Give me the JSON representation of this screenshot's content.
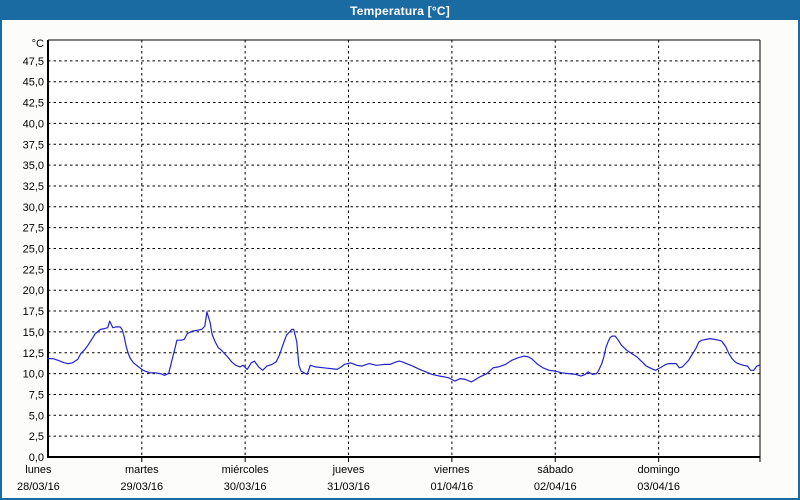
{
  "window": {
    "title": "Temperatura [°C]"
  },
  "colors": {
    "titlebar_bg": "#1b6ba3",
    "window_border": "#1b6ba3",
    "plot_bg": "#ffffff",
    "grid": "#000000",
    "axis": "#000000",
    "line": "#2323cb",
    "text": "#000000",
    "title_text": "#ffffff"
  },
  "chart_data": {
    "type": "line",
    "title": "Temperatura [°C]",
    "y_unit_label": "°C",
    "ylim": [
      0,
      50
    ],
    "y_tick_step": 2.5,
    "y_tick_labels": [
      "0,0",
      "2,5",
      "5,0",
      "7,5",
      "10,0",
      "12,5",
      "15,0",
      "17,5",
      "20,0",
      "22,5",
      "25,0",
      "27,5",
      "30,0",
      "32,5",
      "35,0",
      "37,5",
      "40,0",
      "42,5",
      "45,0",
      "47,5"
    ],
    "grid": true,
    "legend_position": "none",
    "x_days": [
      {
        "name": "lunes",
        "date": "28/03/16"
      },
      {
        "name": "martes",
        "date": "29/03/16"
      },
      {
        "name": "miércoles",
        "date": "30/03/16"
      },
      {
        "name": "jueves",
        "date": "31/03/16"
      },
      {
        "name": "viernes",
        "date": "01/04/16"
      },
      {
        "name": "sábado",
        "date": "02/04/16"
      },
      {
        "name": "domingo",
        "date": "03/04/16"
      }
    ],
    "series": [
      {
        "name": "Temperatura",
        "color": "#2323cb",
        "x_unit": "days_since_monday_00h",
        "points": [
          [
            0.09,
            11.8
          ],
          [
            0.14,
            11.8
          ],
          [
            0.19,
            11.6
          ],
          [
            0.25,
            11.3
          ],
          [
            0.29,
            11.2
          ],
          [
            0.33,
            11.3
          ],
          [
            0.38,
            11.7
          ],
          [
            0.41,
            12.4
          ],
          [
            0.45,
            12.9
          ],
          [
            0.48,
            13.4
          ],
          [
            0.52,
            14.2
          ],
          [
            0.55,
            14.8
          ],
          [
            0.58,
            15.1
          ],
          [
            0.6,
            15.3
          ],
          [
            0.64,
            15.4
          ],
          [
            0.67,
            15.5
          ],
          [
            0.69,
            16.3
          ],
          [
            0.72,
            15.5
          ],
          [
            0.75,
            15.6
          ],
          [
            0.79,
            15.6
          ],
          [
            0.81,
            15.3
          ],
          [
            0.83,
            14.4
          ],
          [
            0.85,
            13.2
          ],
          [
            0.87,
            12.4
          ],
          [
            0.89,
            11.8
          ],
          [
            0.92,
            11.3
          ],
          [
            0.96,
            10.9
          ],
          [
            1.0,
            10.5
          ],
          [
            1.03,
            10.3
          ],
          [
            1.08,
            10.1
          ],
          [
            1.13,
            10.1
          ],
          [
            1.18,
            10.0
          ],
          [
            1.22,
            9.8
          ],
          [
            1.26,
            10.0
          ],
          [
            1.28,
            11.0
          ],
          [
            1.3,
            12.0
          ],
          [
            1.32,
            13.0
          ],
          [
            1.34,
            14.0
          ],
          [
            1.38,
            14.0
          ],
          [
            1.41,
            14.1
          ],
          [
            1.44,
            14.8
          ],
          [
            1.49,
            15.1
          ],
          [
            1.54,
            15.2
          ],
          [
            1.58,
            15.3
          ],
          [
            1.61,
            15.7
          ],
          [
            1.63,
            17.4
          ],
          [
            1.66,
            16.2
          ],
          [
            1.68,
            14.7
          ],
          [
            1.71,
            13.8
          ],
          [
            1.74,
            13.1
          ],
          [
            1.77,
            12.8
          ],
          [
            1.8,
            12.4
          ],
          [
            1.83,
            12.0
          ],
          [
            1.87,
            11.4
          ],
          [
            1.91,
            11.0
          ],
          [
            1.95,
            10.8
          ],
          [
            1.98,
            11.0
          ],
          [
            2.02,
            10.5
          ],
          [
            2.06,
            11.3
          ],
          [
            2.09,
            11.5
          ],
          [
            2.13,
            10.8
          ],
          [
            2.17,
            10.4
          ],
          [
            2.21,
            10.9
          ],
          [
            2.26,
            11.1
          ],
          [
            2.3,
            11.4
          ],
          [
            2.33,
            12.2
          ],
          [
            2.37,
            13.6
          ],
          [
            2.4,
            14.6
          ],
          [
            2.43,
            15.0
          ],
          [
            2.45,
            15.3
          ],
          [
            2.47,
            15.3
          ],
          [
            2.5,
            13.8
          ],
          [
            2.52,
            11.0
          ],
          [
            2.54,
            10.3
          ],
          [
            2.57,
            10.1
          ],
          [
            2.6,
            9.9
          ],
          [
            2.63,
            11.0
          ],
          [
            2.68,
            10.8
          ],
          [
            2.76,
            10.7
          ],
          [
            2.83,
            10.6
          ],
          [
            2.89,
            10.5
          ],
          [
            2.93,
            10.8
          ],
          [
            2.96,
            11.1
          ],
          [
            3.02,
            11.3
          ],
          [
            3.08,
            11.0
          ],
          [
            3.13,
            10.9
          ],
          [
            3.2,
            11.2
          ],
          [
            3.27,
            11.0
          ],
          [
            3.35,
            11.1
          ],
          [
            3.4,
            11.1
          ],
          [
            3.46,
            11.4
          ],
          [
            3.49,
            11.5
          ],
          [
            3.52,
            11.4
          ],
          [
            3.56,
            11.2
          ],
          [
            3.62,
            10.9
          ],
          [
            3.69,
            10.5
          ],
          [
            3.75,
            10.2
          ],
          [
            3.81,
            9.9
          ],
          [
            3.88,
            9.7
          ],
          [
            3.93,
            9.6
          ],
          [
            3.97,
            9.5
          ],
          [
            4.03,
            9.1
          ],
          [
            4.08,
            9.4
          ],
          [
            4.13,
            9.3
          ],
          [
            4.19,
            9.0
          ],
          [
            4.23,
            9.3
          ],
          [
            4.27,
            9.6
          ],
          [
            4.34,
            10.0
          ],
          [
            4.4,
            10.7
          ],
          [
            4.45,
            10.8
          ],
          [
            4.52,
            11.1
          ],
          [
            4.58,
            11.6
          ],
          [
            4.64,
            11.9
          ],
          [
            4.7,
            12.1
          ],
          [
            4.74,
            12.0
          ],
          [
            4.77,
            11.8
          ],
          [
            4.83,
            11.1
          ],
          [
            4.88,
            10.7
          ],
          [
            4.94,
            10.4
          ],
          [
            5.0,
            10.3
          ],
          [
            5.06,
            10.1
          ],
          [
            5.13,
            10.0
          ],
          [
            5.2,
            9.9
          ],
          [
            5.25,
            9.7
          ],
          [
            5.29,
            9.9
          ],
          [
            5.32,
            10.2
          ],
          [
            5.36,
            9.9
          ],
          [
            5.4,
            10.0
          ],
          [
            5.42,
            10.4
          ],
          [
            5.45,
            11.2
          ],
          [
            5.47,
            12.0
          ],
          [
            5.49,
            13.1
          ],
          [
            5.51,
            13.8
          ],
          [
            5.53,
            14.3
          ],
          [
            5.55,
            14.5
          ],
          [
            5.58,
            14.5
          ],
          [
            5.61,
            14.0
          ],
          [
            5.64,
            13.4
          ],
          [
            5.69,
            12.8
          ],
          [
            5.74,
            12.4
          ],
          [
            5.79,
            12.0
          ],
          [
            5.84,
            11.4
          ],
          [
            5.88,
            10.9
          ],
          [
            5.93,
            10.6
          ],
          [
            5.97,
            10.4
          ],
          [
            6.0,
            10.6
          ],
          [
            6.03,
            10.8
          ],
          [
            6.07,
            11.1
          ],
          [
            6.1,
            11.2
          ],
          [
            6.17,
            11.2
          ],
          [
            6.2,
            10.7
          ],
          [
            6.23,
            10.8
          ],
          [
            6.26,
            11.2
          ],
          [
            6.29,
            11.6
          ],
          [
            6.33,
            12.4
          ],
          [
            6.36,
            13.0
          ],
          [
            6.39,
            13.8
          ],
          [
            6.42,
            14.0
          ],
          [
            6.46,
            14.1
          ],
          [
            6.5,
            14.2
          ],
          [
            6.54,
            14.1
          ],
          [
            6.58,
            14.0
          ],
          [
            6.61,
            13.9
          ],
          [
            6.65,
            13.2
          ],
          [
            6.68,
            12.4
          ],
          [
            6.71,
            11.8
          ],
          [
            6.74,
            11.4
          ],
          [
            6.77,
            11.2
          ],
          [
            6.82,
            11.0
          ],
          [
            6.86,
            10.9
          ],
          [
            6.89,
            10.4
          ],
          [
            6.92,
            10.4
          ],
          [
            6.95,
            10.9
          ],
          [
            6.97,
            11.0
          ]
        ]
      }
    ]
  }
}
